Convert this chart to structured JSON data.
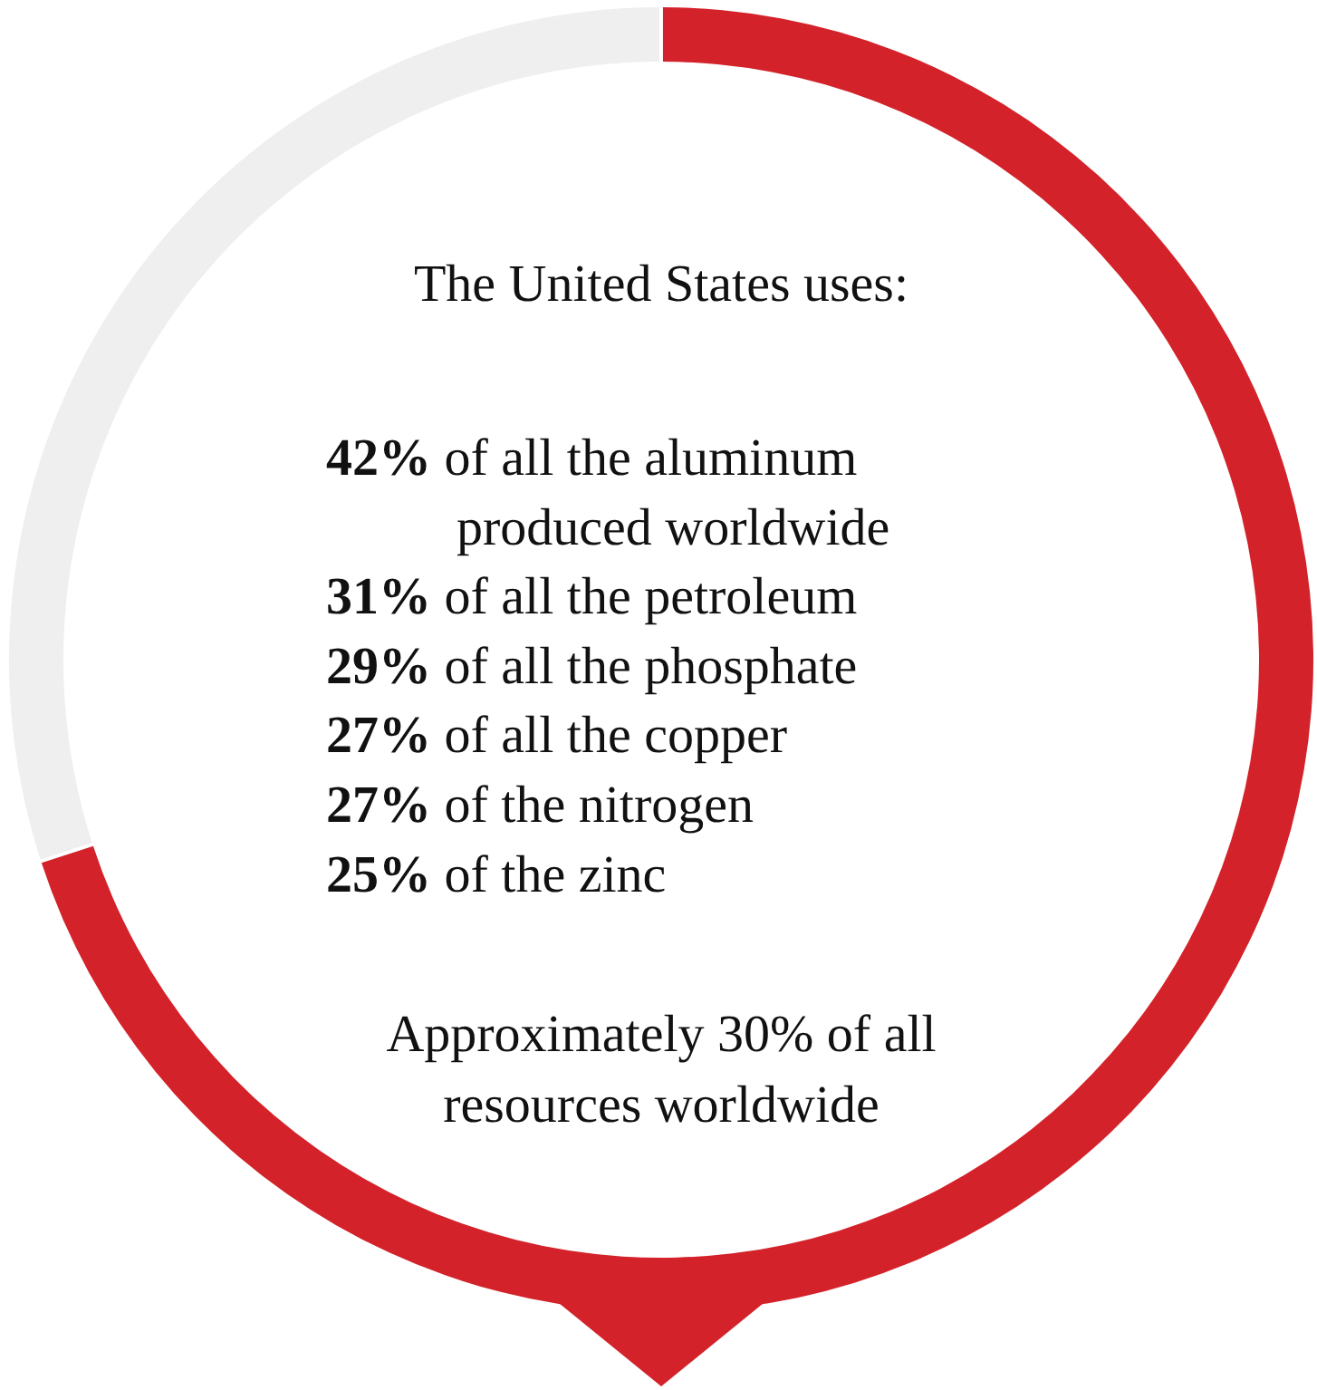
{
  "chart_data": {
    "type": "donut",
    "title": "The United States uses:",
    "categories": [
      null,
      null
    ],
    "values": [
      70,
      30
    ],
    "colors": [
      "#d3222a",
      "#efefef"
    ],
    "annotations": [
      "42% of all the aluminum produced worldwide",
      "31% of all the petroleum",
      "29% of all the phosphate",
      "27% of all the copper",
      "27% of the nitrogen",
      "25% of the zinc",
      "Approximately 30% of all resources worldwide"
    ]
  }
}
